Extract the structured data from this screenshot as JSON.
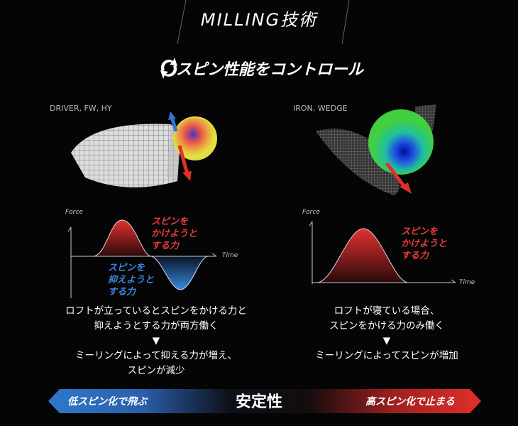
{
  "header": {
    "title": "MILLING技術",
    "subtitle": "スピン性能をコントロール",
    "subtitle_icon": "rotate-arrows-icon"
  },
  "left": {
    "label": "DRIVER, FW, HY",
    "graph": {
      "y_axis": "Force",
      "x_axis": "Time",
      "positive_label": [
        "スピンを",
        "かけようと",
        "する力"
      ],
      "negative_label": [
        "スピンを",
        "抑えようと",
        "する力"
      ]
    },
    "text1": [
      "ロフトが立っているとスピンをかける力と",
      "抑えようとする力が両方働く"
    ],
    "arrow": "▼",
    "text2": [
      "ミーリングによって抑える力が増え、",
      "スピンが減少"
    ]
  },
  "right": {
    "label": "IRON, WEDGE",
    "graph": {
      "y_axis": "Force",
      "x_axis": "Time",
      "positive_label": [
        "スピンを",
        "かけようと",
        "する力"
      ]
    },
    "text1": [
      "ロフトが寝ている場合、",
      "スピンをかける力のみ働く"
    ],
    "arrow": "▼",
    "text2": [
      "ミーリングによってスピンが増加"
    ]
  },
  "bar": {
    "left": "低スピン化で飛ぶ",
    "center": "安定性",
    "right": "高スピン化で止まる",
    "colors": {
      "blue": "#2f78cc",
      "red": "#e0302a"
    }
  }
}
